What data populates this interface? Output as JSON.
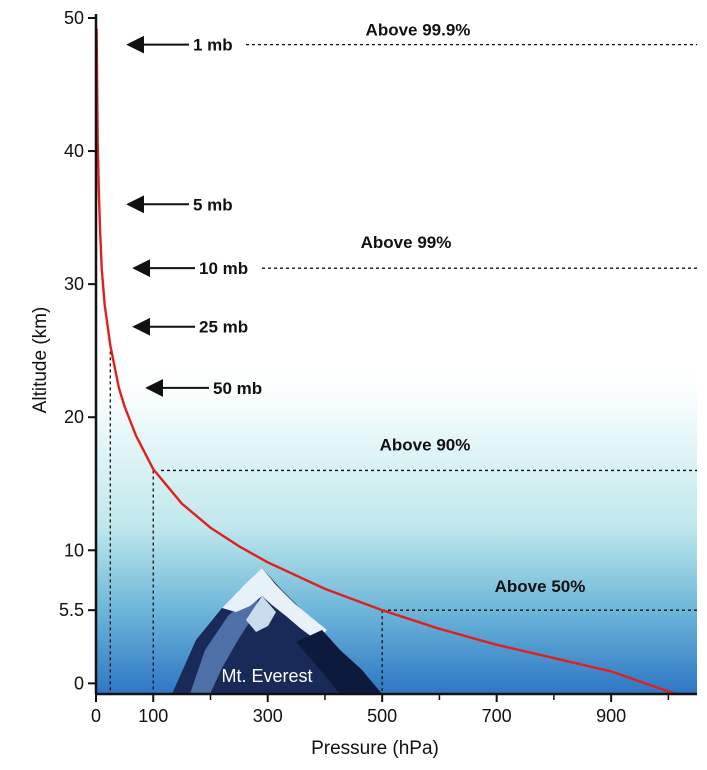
{
  "chart_data": {
    "type": "line",
    "title": "",
    "xlabel": "Pressure (hPa)",
    "ylabel": "Altitude (km)",
    "xlim": [
      0,
      1050
    ],
    "ylim": [
      -0.8,
      50
    ],
    "x_ticks": [
      0,
      100,
      300,
      500,
      700,
      900
    ],
    "x_tick_labels": [
      "0",
      "100",
      "300",
      "500",
      "700",
      "900"
    ],
    "y_ticks": [
      0,
      5.5,
      10,
      20,
      30,
      40,
      50
    ],
    "y_tick_labels": [
      "0",
      "5.5",
      "10",
      "20",
      "30",
      "40",
      "50"
    ],
    "series": [
      {
        "color": "#e0201d",
        "x": [
          1,
          3,
          5,
          7,
          10,
          15,
          25,
          40,
          50,
          70,
          100,
          150,
          200,
          250,
          300,
          400,
          500,
          600,
          700,
          800,
          900,
          1013
        ],
        "y": [
          49.2,
          40.6,
          36.8,
          34.2,
          31.2,
          28.5,
          25.4,
          22.2,
          20.8,
          18.6,
          16.1,
          13.5,
          11.7,
          10.3,
          9.1,
          7.1,
          5.5,
          4.1,
          2.9,
          1.9,
          0.9,
          -0.8
        ]
      }
    ],
    "pressure_annotations": [
      {
        "label": "1 mb",
        "altitude": 48
      },
      {
        "label": "5 mb",
        "altitude": 36
      },
      {
        "label": "10 mb",
        "altitude": 31.2
      },
      {
        "label": "25 mb",
        "altitude": 26.8
      },
      {
        "label": "50 mb",
        "altitude": 22.2
      }
    ],
    "percent_annotations": [
      {
        "label": "Above 99.9%",
        "altitude": 48
      },
      {
        "label": "Above 99%",
        "altitude": 31.2
      },
      {
        "label": "Above 90%",
        "altitude": 16
      },
      {
        "label": "Above 50%",
        "altitude": 5.5
      }
    ],
    "reference_markers": [
      {
        "x": 25,
        "y": 25.4
      },
      {
        "x": 100,
        "y": 16
      },
      {
        "x": 500,
        "y": 5.5
      }
    ],
    "mountain_label": "Mt. Everest",
    "grid": false,
    "legend": "none",
    "colors": {
      "curve": "#e0201d",
      "sky_top": "#ffffff",
      "sky_mid": "#c6ecef",
      "sky_bottom": "#2e76c4",
      "mountain_dark": "#1a2a58",
      "mountain_mid": "#4f6fa8",
      "snow": "#e8f1f8"
    }
  }
}
